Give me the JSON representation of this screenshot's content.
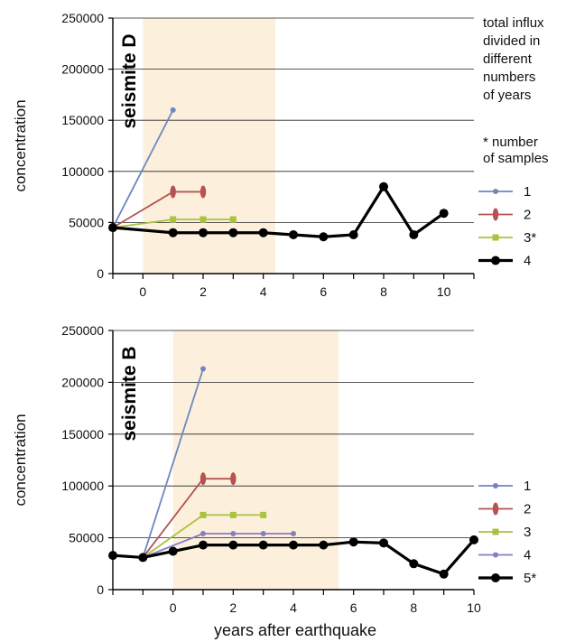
{
  "figure": {
    "xlabel": "years after earthquake",
    "note_lines": [
      "total influx",
      "divided in",
      "different",
      "numbers",
      "of years"
    ],
    "note2_lines": [
      "* number",
      "of samples"
    ]
  },
  "chart_data": [
    {
      "type": "line",
      "panel_label": "seismite D",
      "ylabel": "concentration",
      "xlabel": "",
      "ylim": [
        0,
        250000
      ],
      "yticks": [
        0,
        50000,
        100000,
        150000,
        200000,
        250000
      ],
      "xlim": [
        -1,
        11
      ],
      "xticks": [
        0,
        2,
        4,
        6,
        8,
        10
      ],
      "grid": "horizontal",
      "shaded_region": [
        0,
        4.4
      ],
      "legend_position": "right",
      "series": [
        {
          "name": "1",
          "color": "#6f86c2",
          "marker": "dot",
          "x": [
            -1,
            1
          ],
          "y": [
            45000,
            160000
          ]
        },
        {
          "name": "2",
          "color": "#b65250",
          "marker": "ellipse",
          "x": [
            -1,
            1,
            2
          ],
          "y": [
            45000,
            80000,
            80000
          ]
        },
        {
          "name": "3*",
          "color": "#a9c23f",
          "marker": "square",
          "x": [
            -1,
            1,
            2,
            3
          ],
          "y": [
            45000,
            53000,
            53000,
            53000
          ]
        },
        {
          "name": "4",
          "color": "#000000",
          "marker": "bigdot",
          "x": [
            -1,
            1,
            2,
            3,
            4,
            5,
            6,
            7,
            8,
            9,
            10
          ],
          "y": [
            45000,
            40000,
            40000,
            40000,
            40000,
            38000,
            36000,
            38000,
            85000,
            38000,
            59000
          ]
        }
      ]
    },
    {
      "type": "line",
      "panel_label": "seismite B",
      "ylabel": "concentration",
      "xlabel": "years after earthquake",
      "ylim": [
        0,
        250000
      ],
      "yticks": [
        0,
        50000,
        100000,
        150000,
        200000,
        250000
      ],
      "xlim": [
        -2,
        10
      ],
      "xticks": [
        0,
        2,
        4,
        6,
        8,
        10
      ],
      "grid": "horizontal",
      "shaded_region": [
        0,
        5.5
      ],
      "legend_position": "right",
      "series": [
        {
          "name": "1",
          "color": "#6f86c2",
          "marker": "dot",
          "x": [
            -2,
            -1,
            1
          ],
          "y": [
            33000,
            31000,
            213000
          ]
        },
        {
          "name": "2",
          "color": "#b65250",
          "marker": "ellipse",
          "x": [
            -1,
            1,
            2
          ],
          "y": [
            31000,
            107000,
            107000
          ]
        },
        {
          "name": "3",
          "color": "#a9c23f",
          "marker": "square",
          "x": [
            -1,
            1,
            2,
            3
          ],
          "y": [
            31000,
            72000,
            72000,
            72000
          ]
        },
        {
          "name": "4",
          "color": "#8a7cc0",
          "marker": "dot",
          "x": [
            -1,
            1,
            2,
            3,
            4
          ],
          "y": [
            31000,
            54000,
            54000,
            54000,
            54000
          ]
        },
        {
          "name": "5*",
          "color": "#000000",
          "marker": "bigdot",
          "x": [
            -2,
            -1,
            0,
            1,
            2,
            3,
            4,
            5,
            6,
            7,
            8,
            9,
            10
          ],
          "y": [
            33000,
            31000,
            37000,
            43000,
            43000,
            43000,
            43000,
            43000,
            46000,
            45000,
            25000,
            15000,
            48000
          ]
        }
      ]
    }
  ]
}
